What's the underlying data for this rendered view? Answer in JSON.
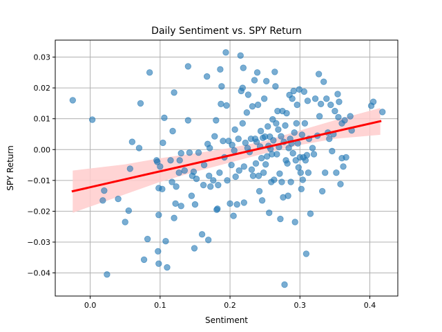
{
  "chart_data": {
    "type": "scatter",
    "title": "Daily Sentiment vs. SPY Return",
    "xlabel": "Sentiment",
    "ylabel": "SPY Return",
    "xlim": [
      -0.05,
      0.44
    ],
    "ylim": [
      -0.0475,
      0.0355
    ],
    "xticks": [
      0.0,
      0.1,
      0.2,
      0.3,
      0.4
    ],
    "xtick_labels": [
      "0.0",
      "0.1",
      "0.2",
      "0.3",
      "0.4"
    ],
    "yticks": [
      -0.04,
      -0.03,
      -0.02,
      -0.01,
      0.0,
      0.01,
      0.02,
      0.03
    ],
    "ytick_labels": [
      "−0.04",
      "−0.03",
      "−0.02",
      "−0.01",
      "0.00",
      "0.01",
      "0.02",
      "0.03"
    ],
    "grid": true,
    "legend": "none",
    "colors": {
      "points": "#1f77b4",
      "regression_line": "#ff0000",
      "confidence_band": "#ffcccc"
    },
    "points": [
      [
        -0.025,
        0.016
      ],
      [
        0.003,
        0.0097
      ],
      [
        0.02,
        -0.0133
      ],
      [
        0.018,
        -0.0165
      ],
      [
        0.024,
        -0.0405
      ],
      [
        0.04,
        -0.016
      ],
      [
        0.05,
        -0.0235
      ],
      [
        0.055,
        -0.0198
      ],
      [
        0.057,
        -0.0062
      ],
      [
        0.06,
        0.0025
      ],
      [
        0.07,
        0.0005
      ],
      [
        0.072,
        0.015
      ],
      [
        0.077,
        -0.0357
      ],
      [
        0.082,
        -0.029
      ],
      [
        0.085,
        0.025
      ],
      [
        0.095,
        -0.0035
      ],
      [
        0.096,
        -0.004
      ],
      [
        0.097,
        -0.033
      ],
      [
        0.098,
        -0.0125
      ],
      [
        0.098,
        -0.0212
      ],
      [
        0.098,
        -0.037
      ],
      [
        0.103,
        -0.0128
      ],
      [
        0.104,
        0.0022
      ],
      [
        0.106,
        0.0103
      ],
      [
        0.108,
        -0.0297
      ],
      [
        0.11,
        -0.0382
      ],
      [
        0.1,
        -0.0055
      ],
      [
        0.115,
        -0.0035
      ],
      [
        0.117,
        -0.0105
      ],
      [
        0.118,
        0.006
      ],
      [
        0.12,
        0.0185
      ],
      [
        0.12,
        -0.0222
      ],
      [
        0.122,
        -0.0175
      ],
      [
        0.123,
        -0.012
      ],
      [
        0.127,
        -0.0075
      ],
      [
        0.128,
        -0.0035
      ],
      [
        0.13,
        -0.0012
      ],
      [
        0.13,
        -0.0183
      ],
      [
        0.135,
        -0.0068
      ],
      [
        0.14,
        0.0095
      ],
      [
        0.14,
        0.027
      ],
      [
        0.142,
        -0.001
      ],
      [
        0.145,
        -0.015
      ],
      [
        0.146,
        -0.0085
      ],
      [
        0.148,
        -0.0072
      ],
      [
        0.149,
        -0.032
      ],
      [
        0.15,
        -0.0178
      ],
      [
        0.152,
        -0.0095
      ],
      [
        0.155,
        -0.001
      ],
      [
        0.16,
        -0.0275
      ],
      [
        0.162,
        -0.0115
      ],
      [
        0.163,
        -0.005
      ],
      [
        0.167,
        0.0237
      ],
      [
        0.168,
        0.0018
      ],
      [
        0.169,
        -0.0293
      ],
      [
        0.17,
        -0.0085
      ],
      [
        0.171,
        0.0005
      ],
      [
        0.172,
        -0.012
      ],
      [
        0.176,
        -0.01
      ],
      [
        0.178,
        0.0043
      ],
      [
        0.18,
        0.0095
      ],
      [
        0.181,
        -0.0195
      ],
      [
        0.182,
        -0.0192
      ],
      [
        0.183,
        -0.0115
      ],
      [
        0.185,
        -0.0075
      ],
      [
        0.186,
        0.026
      ],
      [
        0.187,
        0.0148
      ],
      [
        0.188,
        0.0205
      ],
      [
        0.19,
        0.0028
      ],
      [
        0.192,
        -0.0025
      ],
      [
        0.194,
        0.0315
      ],
      [
        0.195,
        0.0143
      ],
      [
        0.196,
        -0.01
      ],
      [
        0.198,
        0.0028
      ],
      [
        0.2,
        -0.0175
      ],
      [
        0.202,
        -0.005
      ],
      [
        0.203,
        0.0015
      ],
      [
        0.205,
        -0.0215
      ],
      [
        0.206,
        -0.0003
      ],
      [
        0.207,
        0.0065
      ],
      [
        0.208,
        -0.0088
      ],
      [
        0.21,
        -0.0178
      ],
      [
        0.212,
        0.0035
      ],
      [
        0.213,
        -0.0068
      ],
      [
        0.215,
        0.0305
      ],
      [
        0.216,
        0.019
      ],
      [
        0.218,
        0.0085
      ],
      [
        0.218,
        0.02
      ],
      [
        0.219,
        0.0265
      ],
      [
        0.22,
        -0.0055
      ],
      [
        0.22,
        -0.0172
      ],
      [
        0.222,
        0.0022
      ],
      [
        0.224,
        0.012
      ],
      [
        0.225,
        0.0005
      ],
      [
        0.226,
        0.0178
      ],
      [
        0.228,
        -0.0008
      ],
      [
        0.23,
        0.0035
      ],
      [
        0.231,
        -0.0065
      ],
      [
        0.232,
        0.014
      ],
      [
        0.233,
        -0.0085
      ],
      [
        0.235,
        0.0225
      ],
      [
        0.236,
        0.0035
      ],
      [
        0.237,
        -0.0045
      ],
      [
        0.238,
        0.0025
      ],
      [
        0.239,
        0.025
      ],
      [
        0.24,
        0.0145
      ],
      [
        0.241,
        -0.0085
      ],
      [
        0.242,
        -0.0135
      ],
      [
        0.243,
        0.001
      ],
      [
        0.244,
        0.006
      ],
      [
        0.245,
        -0.0028
      ],
      [
        0.246,
        -0.0165
      ],
      [
        0.247,
        0.0038
      ],
      [
        0.248,
        -0.0075
      ],
      [
        0.249,
        0.0165
      ],
      [
        0.25,
        0.0042
      ],
      [
        0.251,
        -0.0048
      ],
      [
        0.252,
        0.0222
      ],
      [
        0.253,
        -0.0022
      ],
      [
        0.254,
        0.0075
      ],
      [
        0.255,
        0.0012
      ],
      [
        0.256,
        -0.0205
      ],
      [
        0.257,
        0.0042
      ],
      [
        0.258,
        0.0002
      ],
      [
        0.259,
        -0.0105
      ],
      [
        0.26,
        -0.0015
      ],
      [
        0.261,
        0.0098
      ],
      [
        0.262,
        0.003
      ],
      [
        0.263,
        -0.0098
      ],
      [
        0.264,
        0.0252
      ],
      [
        0.265,
        0.0205
      ],
      [
        0.266,
        0.0085
      ],
      [
        0.267,
        -0.0015
      ],
      [
        0.268,
        0.0125
      ],
      [
        0.269,
        0.0065
      ],
      [
        0.27,
        0.0008
      ],
      [
        0.271,
        -0.0078
      ],
      [
        0.272,
        -0.0225
      ],
      [
        0.273,
        0.0043
      ],
      [
        0.274,
        -0.0105
      ],
      [
        0.275,
        0.0125
      ],
      [
        0.276,
        -0.0155
      ],
      [
        0.277,
        0.0025
      ],
      [
        0.278,
        -0.0438
      ],
      [
        0.279,
        0.0078
      ],
      [
        0.28,
        -0.0035
      ],
      [
        0.281,
        0.0118
      ],
      [
        0.282,
        -0.0045
      ],
      [
        0.283,
        -0.015
      ],
      [
        0.284,
        0.0005
      ],
      [
        0.285,
        0.0177
      ],
      [
        0.286,
        0.0035
      ],
      [
        0.287,
        -0.0105
      ],
      [
        0.288,
        0.002
      ],
      [
        0.289,
        0.0165
      ],
      [
        0.29,
        -0.0012
      ],
      [
        0.291,
        0.019
      ],
      [
        0.292,
        0.0055
      ],
      [
        0.293,
        -0.0235
      ],
      [
        0.294,
        -0.0035
      ],
      [
        0.295,
        0.0085
      ],
      [
        0.296,
        0.0145
      ],
      [
        0.297,
        0.002
      ],
      [
        0.298,
        -0.0058
      ],
      [
        0.299,
        0.0195
      ],
      [
        0.3,
        -0.0025
      ],
      [
        0.301,
        -0.0075
      ],
      [
        0.302,
        -0.0128
      ],
      [
        0.303,
        0.0048
      ],
      [
        0.304,
        -0.0098
      ],
      [
        0.305,
        -0.0025
      ],
      [
        0.306,
        0.0188
      ],
      [
        0.307,
        0.0085
      ],
      [
        0.308,
        -0.0035
      ],
      [
        0.309,
        -0.0338
      ],
      [
        0.31,
        -0.0018
      ],
      [
        0.311,
        0.0158
      ],
      [
        0.312,
        -0.0075
      ],
      [
        0.313,
        0.0035
      ],
      [
        0.315,
        -0.0208
      ],
      [
        0.318,
        0.0005
      ],
      [
        0.32,
        -0.0015
      ],
      [
        0.322,
        0.0165
      ],
      [
        0.325,
        0.0045
      ],
      [
        0.327,
        0.0245
      ],
      [
        0.328,
        0.0108
      ],
      [
        0.33,
        0.0148
      ],
      [
        0.332,
        -0.0135
      ],
      [
        0.334,
        0.022
      ],
      [
        0.336,
        -0.0075
      ],
      [
        0.338,
        0.0165
      ],
      [
        0.34,
        0.0055
      ],
      [
        0.342,
        0.0035
      ],
      [
        0.344,
        0.0145
      ],
      [
        0.346,
        -0.0005
      ],
      [
        0.348,
        0.005
      ],
      [
        0.35,
        0.0125
      ],
      [
        0.352,
        -0.0075
      ],
      [
        0.354,
        0.018
      ],
      [
        0.356,
        0.0155
      ],
      [
        0.358,
        -0.0112
      ],
      [
        0.36,
        -0.0028
      ],
      [
        0.362,
        -0.0055
      ],
      [
        0.364,
        0.0095
      ],
      [
        0.366,
        -0.0025
      ],
      [
        0.372,
        0.0108
      ],
      [
        0.374,
        0.0062
      ],
      [
        0.402,
        0.0142
      ],
      [
        0.405,
        0.0155
      ],
      [
        0.418,
        0.0122
      ],
      [
        0.36,
        0.0085
      ],
      [
        0.355,
        0.0105
      ]
    ],
    "regression": {
      "x": [
        -0.025,
        0.415
      ],
      "y": [
        -0.0135,
        0.0092
      ]
    },
    "confidence_band": {
      "x": [
        -0.025,
        0.05,
        0.1,
        0.15,
        0.2,
        0.25,
        0.3,
        0.35,
        0.415
      ],
      "lower": [
        -0.0205,
        -0.0145,
        -0.0105,
        -0.0072,
        -0.0042,
        -0.0012,
        0.0015,
        0.0035,
        0.0048
      ],
      "upper": [
        -0.0068,
        -0.0048,
        -0.0028,
        -0.0012,
        0.0005,
        0.0028,
        0.0062,
        0.0095,
        0.0135
      ]
    }
  }
}
